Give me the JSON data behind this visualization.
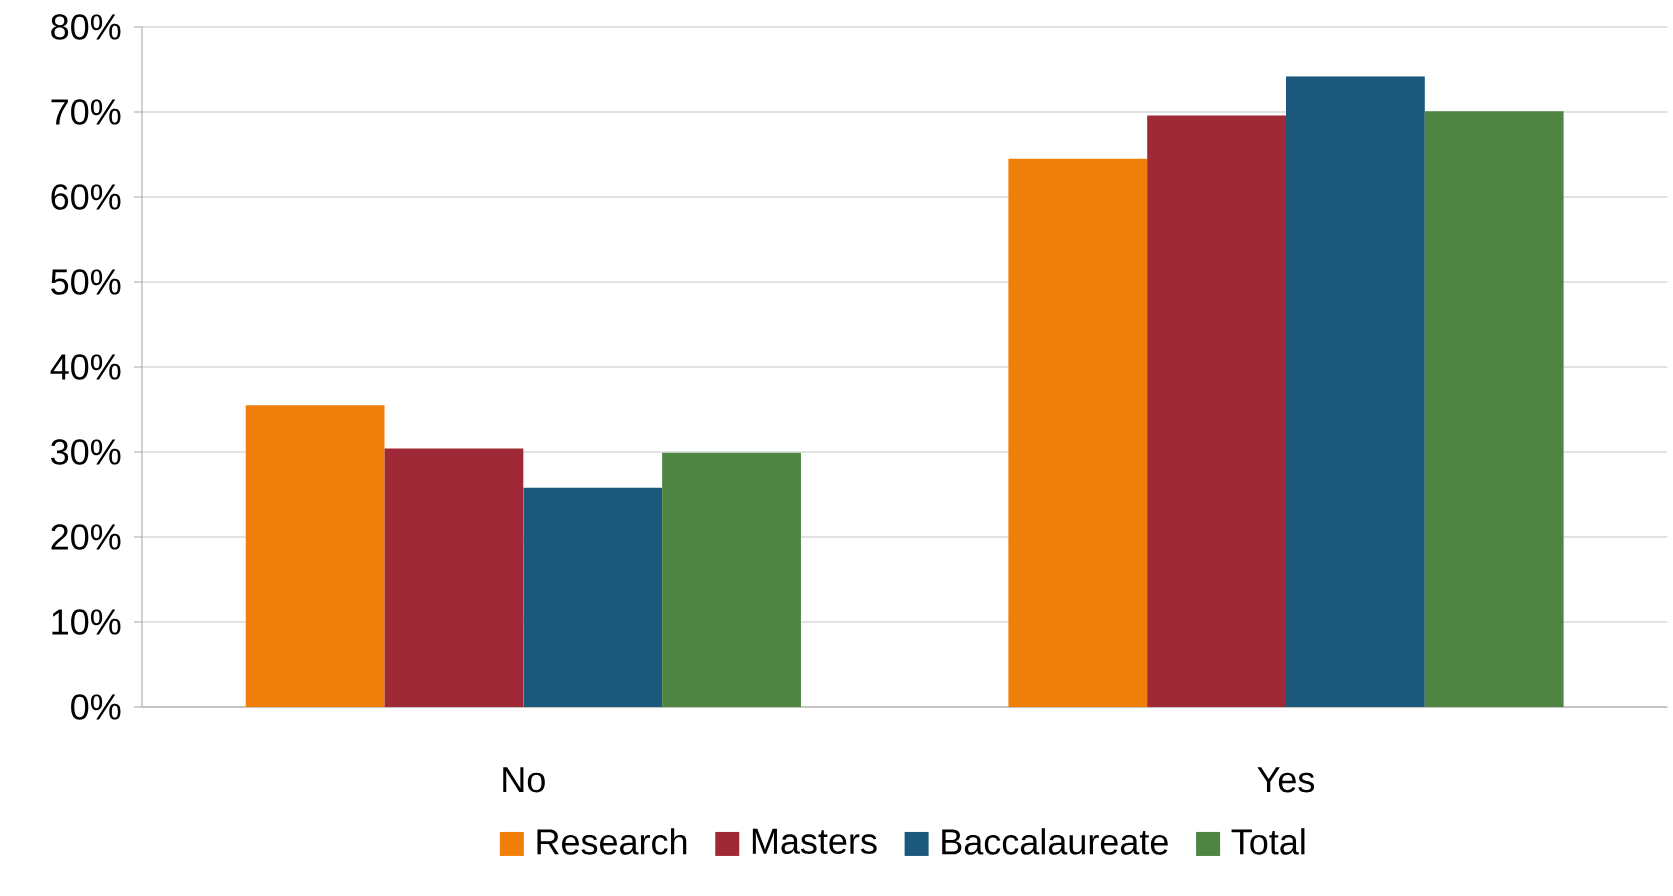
{
  "chart_data": {
    "type": "bar",
    "categories": [
      "No",
      "Yes"
    ],
    "series": [
      {
        "name": "Research",
        "color": "#f07f09",
        "values": [
          35.5,
          64.5
        ]
      },
      {
        "name": "Masters",
        "color": "#9f2936",
        "values": [
          30.4,
          69.6
        ]
      },
      {
        "name": "Baccalaureate",
        "color": "#1b587c",
        "values": [
          25.8,
          74.2
        ]
      },
      {
        "name": "Total",
        "color": "#4e8542",
        "values": [
          29.9,
          70.1
        ]
      }
    ],
    "ylim": [
      0,
      80
    ],
    "yticks": [
      {
        "value": 0,
        "label": "0%"
      },
      {
        "value": 10,
        "label": "10%"
      },
      {
        "value": 20,
        "label": "20%"
      },
      {
        "value": 30,
        "label": "30%"
      },
      {
        "value": 40,
        "label": "40%"
      },
      {
        "value": 50,
        "label": "50%"
      },
      {
        "value": 60,
        "label": "60%"
      },
      {
        "value": 70,
        "label": "70%"
      },
      {
        "value": 80,
        "label": "80%"
      }
    ],
    "grid": "y",
    "legend": "bottom"
  }
}
